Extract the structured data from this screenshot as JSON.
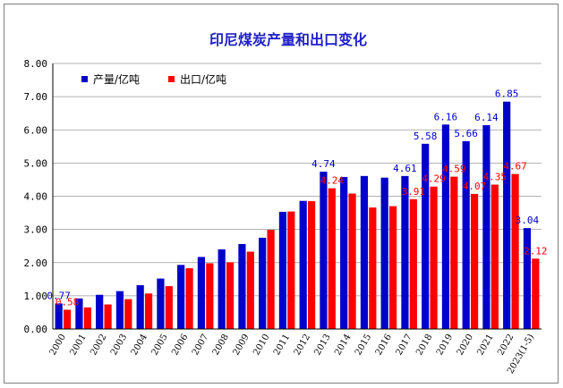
{
  "chart_data": {
    "type": "bar",
    "title": "印尼煤炭产量和出口变化",
    "categories": [
      "2000",
      "2001",
      "2002",
      "2003",
      "2004",
      "2005",
      "2006",
      "2007",
      "2008",
      "2009",
      "2010",
      "2011",
      "2012",
      "2013",
      "2014",
      "2015",
      "2016",
      "2017",
      "2018",
      "2019",
      "2020",
      "2021",
      "2022",
      "2023(1-5)"
    ],
    "series": [
      {
        "name": "产量/亿吨",
        "color": "#0000cc",
        "values": [
          0.77,
          0.92,
          1.03,
          1.14,
          1.32,
          1.52,
          1.93,
          2.17,
          2.4,
          2.56,
          2.75,
          3.53,
          3.86,
          4.74,
          4.58,
          4.61,
          4.56,
          4.61,
          5.58,
          6.16,
          5.66,
          6.14,
          6.85,
          3.04
        ],
        "data_labels": {
          "0": "0.77",
          "13": "4.74",
          "17": "4.61",
          "18": "5.58",
          "19": "6.16",
          "20": "5.66",
          "21": "6.14",
          "22": "6.85",
          "23": "3.04"
        }
      },
      {
        "name": "出口/亿吨",
        "color": "#ff0000",
        "values": [
          0.58,
          0.65,
          0.74,
          0.9,
          1.07,
          1.29,
          1.83,
          1.98,
          2.01,
          2.33,
          2.99,
          3.54,
          3.85,
          4.24,
          4.08,
          3.66,
          3.7,
          3.91,
          4.29,
          4.59,
          4.07,
          4.35,
          4.67,
          2.12
        ],
        "data_labels": {
          "0": "0.58",
          "13": "4.24",
          "17": "3.91",
          "18": "4.29",
          "19": "4.59",
          "20": "4.07",
          "21": "4.35",
          "22": "4.67",
          "23": "2.12"
        }
      }
    ],
    "y_ticks": [
      "0.00",
      "1.00",
      "2.00",
      "3.00",
      "4.00",
      "5.00",
      "6.00",
      "7.00",
      "8.00"
    ],
    "ylim": [
      0,
      8
    ],
    "grid": true,
    "legend_position": "top-left"
  }
}
